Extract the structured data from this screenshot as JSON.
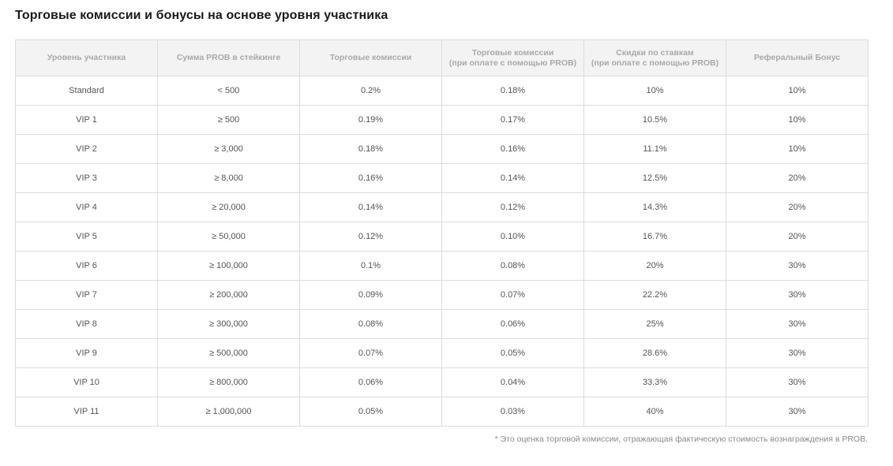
{
  "title": "Торговые комиссии и бонусы на основе уровня участника",
  "table": {
    "headers": [
      {
        "line1": "Уровень участника",
        "line2": ""
      },
      {
        "line1": "Сумма PROB в стейкинге",
        "line2": ""
      },
      {
        "line1": "Торговые комиссии",
        "line2": ""
      },
      {
        "line1": "Торговые комиссии",
        "line2": "(при оплате с помощью PROB)"
      },
      {
        "line1": "Скидки по ставкам",
        "line2": "(при оплате с помощью PROB)"
      },
      {
        "line1": "Реферальный Бонус",
        "line2": ""
      }
    ],
    "rows": [
      [
        "Standard",
        "< 500",
        "0.2%",
        "0.18%",
        "10%",
        "10%"
      ],
      [
        "VIP 1",
        "≥ 500",
        "0.19%",
        "0.17%",
        "10.5%",
        "10%"
      ],
      [
        "VIP 2",
        "≥ 3,000",
        "0.18%",
        "0.16%",
        "11.1%",
        "10%"
      ],
      [
        "VIP 3",
        "≥ 8,000",
        "0.16%",
        "0.14%",
        "12.5%",
        "20%"
      ],
      [
        "VIP 4",
        "≥ 20,000",
        "0.14%",
        "0.12%",
        "14.3%",
        "20%"
      ],
      [
        "VIP 5",
        "≥ 50,000",
        "0.12%",
        "0.10%",
        "16.7%",
        "20%"
      ],
      [
        "VIP 6",
        "≥ 100,000",
        "0.1%",
        "0.08%",
        "20%",
        "30%"
      ],
      [
        "VIP 7",
        "≥ 200,000",
        "0.09%",
        "0.07%",
        "22.2%",
        "30%"
      ],
      [
        "VIP 8",
        "≥ 300,000",
        "0.08%",
        "0.06%",
        "25%",
        "30%"
      ],
      [
        "VIP 9",
        "≥ 500,000",
        "0.07%",
        "0.05%",
        "28.6%",
        "30%"
      ],
      [
        "VIP 10",
        "≥ 800,000",
        "0.06%",
        "0.04%",
        "33.3%",
        "30%"
      ],
      [
        "VIP 11",
        "≥ 1,000,000",
        "0.05%",
        "0.03%",
        "40%",
        "30%"
      ]
    ]
  },
  "footnote": "* Это оценка торговой комиссии, отражающая фактическую стоимость вознаграждения в PROB.",
  "colors": {
    "header_bg": "#f3f3f3",
    "header_text": "#a9a9a9",
    "border": "#dcdcdc",
    "cell_text": "#555555"
  }
}
